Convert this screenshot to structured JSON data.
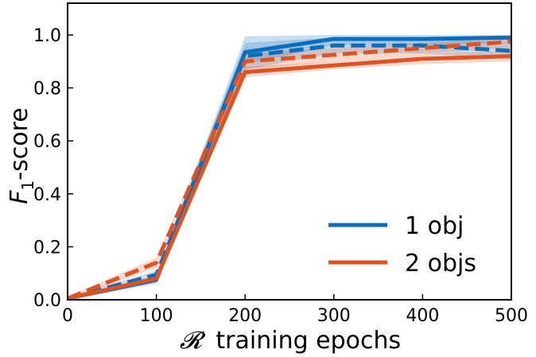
{
  "chart_data": {
    "type": "line",
    "title": "",
    "xlabel": "training epochs",
    "xlabel_symbol": "𝓡",
    "ylabel": "-score",
    "ylabel_symbol": "F",
    "ylabel_subscript": "1",
    "xlim": [
      0,
      500
    ],
    "ylim": [
      0,
      1.12
    ],
    "xticks": [
      0,
      100,
      200,
      300,
      400,
      500
    ],
    "xtick_labels": [
      "0",
      "100",
      "200",
      "300",
      "400",
      "500"
    ],
    "yticks": [
      0.0,
      0.2,
      0.4,
      0.6,
      0.8,
      1.0
    ],
    "ytick_labels": [
      "0.0",
      "0.2",
      "0.4",
      "0.6",
      "0.8",
      "1.0"
    ],
    "grid": false,
    "legend_position": "lower-right",
    "x": [
      0,
      100,
      200,
      300,
      400,
      500
    ],
    "series": [
      {
        "name": "1 obj",
        "color": "#0a6ebd",
        "style": "solid",
        "values": [
          0.005,
          0.075,
          0.935,
          0.985,
          0.985,
          0.99
        ],
        "lower": [
          0.0,
          0.06,
          0.89,
          0.96,
          0.96,
          0.97
        ],
        "upper": [
          0.01,
          0.09,
          0.995,
          1.0,
          1.0,
          1.0
        ]
      },
      {
        "color": "#0a6ebd",
        "style": "dashed",
        "values": [
          0.005,
          0.095,
          0.92,
          0.96,
          0.96,
          0.94
        ],
        "lower": [
          0.0,
          0.08,
          0.87,
          0.93,
          0.93,
          0.91
        ],
        "upper": [
          0.01,
          0.11,
          0.97,
          0.99,
          0.99,
          0.97
        ]
      },
      {
        "name": "2 objs",
        "color": "#e0521f",
        "style": "solid",
        "values": [
          0.005,
          0.08,
          0.86,
          0.885,
          0.91,
          0.92
        ],
        "lower": [
          0.0,
          0.07,
          0.84,
          0.87,
          0.89,
          0.9
        ],
        "upper": [
          0.01,
          0.09,
          0.88,
          0.9,
          0.93,
          0.94
        ]
      },
      {
        "color": "#e0521f",
        "style": "dashed",
        "values": [
          0.005,
          0.14,
          0.9,
          0.925,
          0.95,
          0.975
        ],
        "lower": [
          0.0,
          0.12,
          0.87,
          0.9,
          0.93,
          0.95
        ],
        "upper": [
          0.01,
          0.16,
          0.93,
          0.95,
          0.97,
          0.99
        ]
      }
    ]
  }
}
